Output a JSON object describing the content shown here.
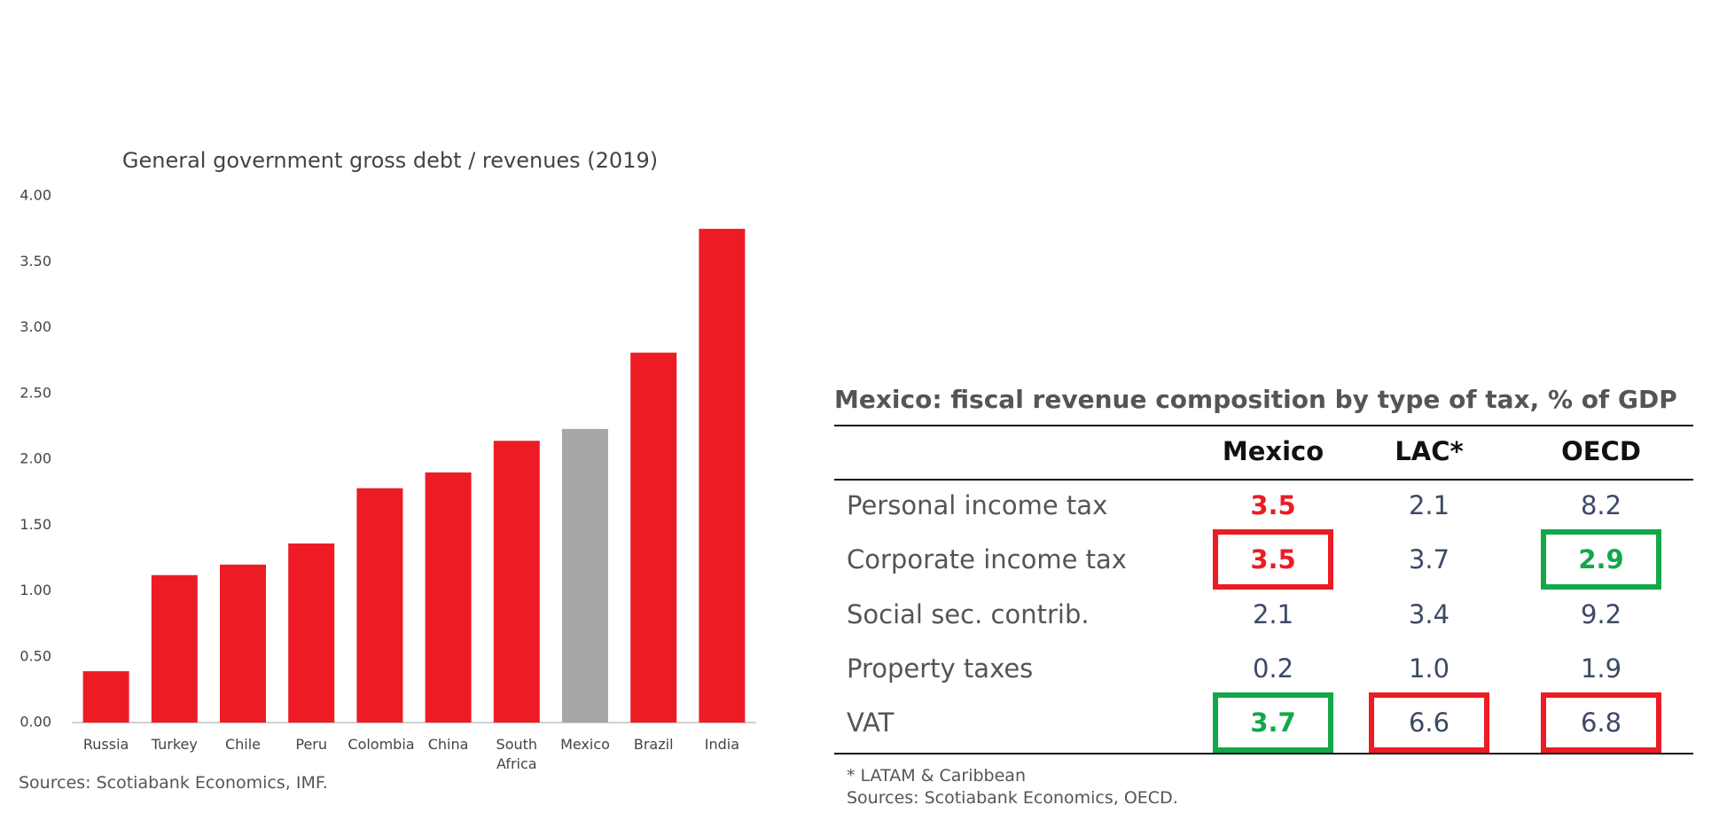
{
  "chart_data": {
    "type": "bar",
    "title": "General government gross debt / revenues (2019)",
    "categories": [
      "Russia",
      "Turkey",
      "Chile",
      "Peru",
      "Colombia",
      "China",
      "South Africa",
      "Mexico",
      "Brazil",
      "India"
    ],
    "values": [
      0.39,
      1.12,
      1.2,
      1.36,
      1.78,
      1.9,
      2.14,
      2.23,
      2.81,
      3.75
    ],
    "colors": [
      "#ed1c24",
      "#ed1c24",
      "#ed1c24",
      "#ed1c24",
      "#ed1c24",
      "#ed1c24",
      "#ed1c24",
      "#a6a6a6",
      "#ed1c24",
      "#ed1c24"
    ],
    "ylim": [
      0,
      4
    ],
    "yticks": [
      {
        "value": 0,
        "label": "0.00"
      },
      {
        "value": 0.5,
        "label": "0.50"
      },
      {
        "value": 1,
        "label": "1.00"
      },
      {
        "value": 1.5,
        "label": "1.50"
      },
      {
        "value": 2,
        "label": "2.00"
      },
      {
        "value": 2.5,
        "label": "2.50"
      },
      {
        "value": 3,
        "label": "3.00"
      },
      {
        "value": 3.5,
        "label": "3.50"
      },
      {
        "value": 4,
        "label": "4.00"
      }
    ],
    "grid": false,
    "source": "Sources: Scotiabank Economics, IMF."
  },
  "table": {
    "title": "Mexico: fiscal revenue composition by type of tax, % of GDP",
    "columns": [
      "Mexico",
      "LAC*",
      "OECD"
    ],
    "rows": [
      {
        "label": "Personal income tax",
        "values": [
          "3.5",
          "2.1",
          "8.2"
        ]
      },
      {
        "label": "Corporate income tax",
        "values": [
          "3.5",
          "3.7",
          "2.9"
        ]
      },
      {
        "label": "Social sec. contrib.",
        "values": [
          "2.1",
          "3.4",
          "9.2"
        ]
      },
      {
        "label": "Property taxes",
        "values": [
          "0.2",
          "1.0",
          "1.9"
        ]
      },
      {
        "label": "VAT",
        "values": [
          "3.7",
          "6.6",
          "6.8"
        ]
      }
    ],
    "footnote": "* LATAM & Caribbean",
    "source": "Sources: Scotiabank Economics, OECD."
  }
}
